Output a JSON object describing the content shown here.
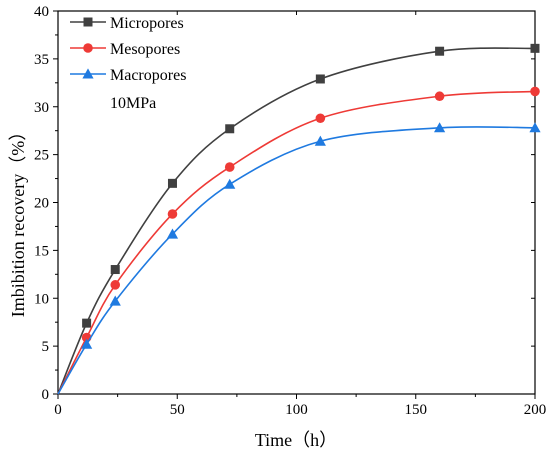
{
  "chart_data": {
    "type": "line",
    "title": "",
    "xlabel": "Time（h）",
    "ylabel": "Imbibition recovery（%）",
    "xlim": [
      0,
      200
    ],
    "ylim": [
      0,
      40
    ],
    "xticks": [
      0,
      50,
      100,
      150,
      200
    ],
    "yticks": [
      0,
      5,
      10,
      15,
      20,
      25,
      30,
      35,
      40
    ],
    "grid": false,
    "legend_position": "top-left",
    "annotation": "10MPa",
    "series": [
      {
        "name": "Micropores",
        "color": "#404040",
        "marker": "square",
        "x": [
          0,
          12,
          24,
          48,
          72,
          110,
          160,
          200
        ],
        "values": [
          0,
          7.4,
          13.0,
          22.0,
          27.7,
          32.9,
          35.8,
          36.1
        ]
      },
      {
        "name": "Mesopores",
        "color": "#ee3a36",
        "marker": "circle",
        "x": [
          0,
          12,
          24,
          48,
          72,
          110,
          160,
          200
        ],
        "values": [
          0,
          5.9,
          11.4,
          18.8,
          23.7,
          28.8,
          31.1,
          31.6
        ]
      },
      {
        "name": "Macropores",
        "color": "#1f7ae0",
        "marker": "triangle",
        "x": [
          0,
          12,
          24,
          48,
          72,
          110,
          160,
          200
        ],
        "values": [
          0,
          5.2,
          9.7,
          16.7,
          21.9,
          26.4,
          27.8,
          27.8
        ]
      }
    ]
  }
}
